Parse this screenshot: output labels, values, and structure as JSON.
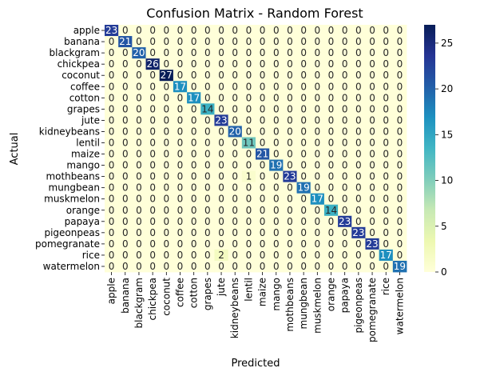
{
  "chart_data": {
    "type": "heatmap",
    "title": "Confusion Matrix - Random Forest",
    "xlabel": "Predicted",
    "ylabel": "Actual",
    "labels": [
      "apple",
      "banana",
      "blackgram",
      "chickpea",
      "coconut",
      "coffee",
      "cotton",
      "grapes",
      "jute",
      "kidneybeans",
      "lentil",
      "maize",
      "mango",
      "mothbeans",
      "mungbean",
      "muskmelon",
      "orange",
      "papaya",
      "pigeonpeas",
      "pomegranate",
      "rice",
      "watermelon"
    ],
    "matrix": [
      [
        23,
        0,
        0,
        0,
        0,
        0,
        0,
        0,
        0,
        0,
        0,
        0,
        0,
        0,
        0,
        0,
        0,
        0,
        0,
        0,
        0,
        0
      ],
      [
        0,
        21,
        0,
        0,
        0,
        0,
        0,
        0,
        0,
        0,
        0,
        0,
        0,
        0,
        0,
        0,
        0,
        0,
        0,
        0,
        0,
        0
      ],
      [
        0,
        0,
        20,
        0,
        0,
        0,
        0,
        0,
        0,
        0,
        0,
        0,
        0,
        0,
        0,
        0,
        0,
        0,
        0,
        0,
        0,
        0
      ],
      [
        0,
        0,
        0,
        26,
        0,
        0,
        0,
        0,
        0,
        0,
        0,
        0,
        0,
        0,
        0,
        0,
        0,
        0,
        0,
        0,
        0,
        0
      ],
      [
        0,
        0,
        0,
        0,
        27,
        0,
        0,
        0,
        0,
        0,
        0,
        0,
        0,
        0,
        0,
        0,
        0,
        0,
        0,
        0,
        0,
        0
      ],
      [
        0,
        0,
        0,
        0,
        0,
        17,
        0,
        0,
        0,
        0,
        0,
        0,
        0,
        0,
        0,
        0,
        0,
        0,
        0,
        0,
        0,
        0
      ],
      [
        0,
        0,
        0,
        0,
        0,
        0,
        17,
        0,
        0,
        0,
        0,
        0,
        0,
        0,
        0,
        0,
        0,
        0,
        0,
        0,
        0,
        0
      ],
      [
        0,
        0,
        0,
        0,
        0,
        0,
        0,
        14,
        0,
        0,
        0,
        0,
        0,
        0,
        0,
        0,
        0,
        0,
        0,
        0,
        0,
        0
      ],
      [
        0,
        0,
        0,
        0,
        0,
        0,
        0,
        0,
        23,
        0,
        0,
        0,
        0,
        0,
        0,
        0,
        0,
        0,
        0,
        0,
        0,
        0
      ],
      [
        0,
        0,
        0,
        0,
        0,
        0,
        0,
        0,
        0,
        20,
        0,
        0,
        0,
        0,
        0,
        0,
        0,
        0,
        0,
        0,
        0,
        0
      ],
      [
        0,
        0,
        0,
        0,
        0,
        0,
        0,
        0,
        0,
        0,
        11,
        0,
        0,
        0,
        0,
        0,
        0,
        0,
        0,
        0,
        0,
        0
      ],
      [
        0,
        0,
        0,
        0,
        0,
        0,
        0,
        0,
        0,
        0,
        0,
        21,
        0,
        0,
        0,
        0,
        0,
        0,
        0,
        0,
        0,
        0
      ],
      [
        0,
        0,
        0,
        0,
        0,
        0,
        0,
        0,
        0,
        0,
        0,
        0,
        19,
        0,
        0,
        0,
        0,
        0,
        0,
        0,
        0,
        0
      ],
      [
        0,
        0,
        0,
        0,
        0,
        0,
        0,
        0,
        0,
        0,
        1,
        0,
        0,
        23,
        0,
        0,
        0,
        0,
        0,
        0,
        0,
        0
      ],
      [
        0,
        0,
        0,
        0,
        0,
        0,
        0,
        0,
        0,
        0,
        0,
        0,
        0,
        0,
        19,
        0,
        0,
        0,
        0,
        0,
        0,
        0
      ],
      [
        0,
        0,
        0,
        0,
        0,
        0,
        0,
        0,
        0,
        0,
        0,
        0,
        0,
        0,
        0,
        17,
        0,
        0,
        0,
        0,
        0,
        0
      ],
      [
        0,
        0,
        0,
        0,
        0,
        0,
        0,
        0,
        0,
        0,
        0,
        0,
        0,
        0,
        0,
        0,
        14,
        0,
        0,
        0,
        0,
        0
      ],
      [
        0,
        0,
        0,
        0,
        0,
        0,
        0,
        0,
        0,
        0,
        0,
        0,
        0,
        0,
        0,
        0,
        0,
        23,
        0,
        0,
        0,
        0
      ],
      [
        0,
        0,
        0,
        0,
        0,
        0,
        0,
        0,
        0,
        0,
        0,
        0,
        0,
        0,
        0,
        0,
        0,
        0,
        23,
        0,
        0,
        0
      ],
      [
        0,
        0,
        0,
        0,
        0,
        0,
        0,
        0,
        0,
        0,
        0,
        0,
        0,
        0,
        0,
        0,
        0,
        0,
        0,
        23,
        0,
        0
      ],
      [
        0,
        0,
        0,
        0,
        0,
        0,
        0,
        0,
        2,
        0,
        0,
        0,
        0,
        0,
        0,
        0,
        0,
        0,
        0,
        0,
        17,
        0
      ],
      [
        0,
        0,
        0,
        0,
        0,
        0,
        0,
        0,
        0,
        0,
        0,
        0,
        0,
        0,
        0,
        0,
        0,
        0,
        0,
        0,
        0,
        19
      ]
    ],
    "colormap": "YlGnBu",
    "colormap_stops": [
      "#ffffd9",
      "#edf8b1",
      "#c7e9b4",
      "#7fcdbb",
      "#41b6c4",
      "#1d91c0",
      "#225ea8",
      "#253494",
      "#081d58"
    ],
    "vmin": 0,
    "vmax": 27,
    "colorbar_ticks": [
      0,
      5,
      10,
      15,
      20,
      25
    ]
  }
}
